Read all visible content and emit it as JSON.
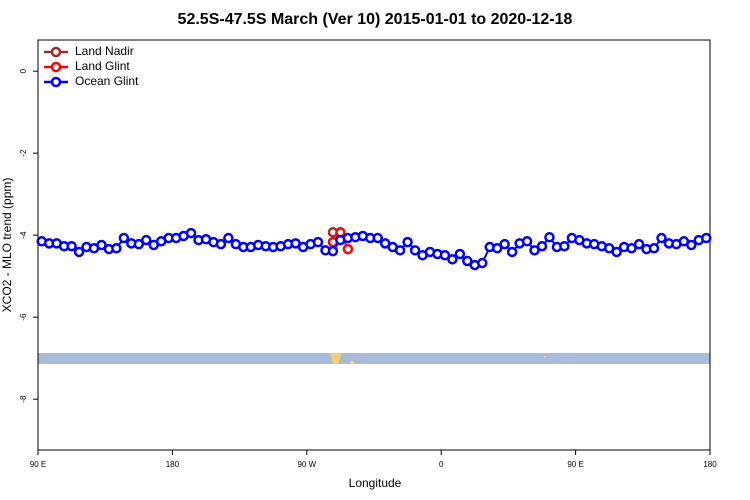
{
  "chart_data": {
    "type": "line",
    "title": "52.5S-47.5S March (Ver 10)   2015-01-01 to 2020-12-18",
    "x_label": "Longitude",
    "y_label": "XCO2 - MLO trend (ppm)",
    "xlim": [
      90,
      540
    ],
    "ylim": [
      0.76,
      -9.24
    ],
    "xticks": [
      {
        "value": 90,
        "label": "90 E"
      },
      180,
      {
        "value": 270,
        "label": "90 W"
      },
      {
        "value": 360,
        "label": "0"
      },
      {
        "value": 450,
        "label": "90 E"
      },
      {
        "value": 540,
        "label": "180"
      }
    ],
    "yticks": [
      0,
      -2,
      -4,
      -6,
      -8
    ],
    "legend": "top-left",
    "series": [
      {
        "name": "Land Nadir",
        "color": "#a52a2a",
        "x": [
          287.5
        ],
        "values": [
          -3.93
        ]
      },
      {
        "name": "Land Glint",
        "color": "#ff0000",
        "x": [
          287.5,
          292.5,
          297.5
        ],
        "values": [
          -4.17,
          -3.93,
          -4.34
        ]
      },
      {
        "name": "Ocean Glint",
        "color": "#0000ff",
        "x": [
          92.5,
          97.5,
          102.5,
          107.5,
          112.5,
          117.5,
          122.5,
          127.5,
          132.5,
          137.5,
          142.5,
          147.5,
          152.5,
          157.5,
          162.5,
          167.5,
          172.5,
          177.5,
          182.5,
          187.5,
          192.5,
          197.5,
          202.5,
          207.5,
          212.5,
          217.5,
          222.5,
          227.5,
          232.5,
          237.5,
          242.5,
          247.5,
          252.5,
          257.5,
          262.5,
          267.5,
          272.5,
          277.5,
          282.5,
          287.5,
          292.5,
          297.5,
          302.5,
          307.5,
          312.5,
          317.5,
          322.5,
          327.5,
          332.5,
          337.5,
          342.5,
          347.5,
          352.5,
          357.5,
          362.5,
          367.5,
          372.5,
          377.5,
          382.5,
          387.5,
          392.5,
          397.5,
          402.5,
          407.5,
          412.5,
          417.5,
          422.5,
          427.5,
          432.5,
          437.5,
          442.5,
          447.5,
          452.5,
          457.5,
          462.5,
          467.5,
          472.5,
          477.5,
          482.5,
          487.5,
          492.5,
          497.5,
          502.5,
          507.5,
          512.5,
          517.5,
          522.5,
          527.5,
          532.5,
          537.5
        ],
        "values": [
          -4.15,
          -4.2,
          -4.2,
          -4.27,
          -4.27,
          -4.41,
          -4.29,
          -4.32,
          -4.24,
          -4.34,
          -4.32,
          -4.07,
          -4.2,
          -4.22,
          -4.12,
          -4.24,
          -4.15,
          -4.07,
          -4.07,
          -4.02,
          -3.95,
          -4.12,
          -4.1,
          -4.17,
          -4.22,
          -4.07,
          -4.22,
          -4.29,
          -4.29,
          -4.24,
          -4.27,
          -4.29,
          -4.27,
          -4.22,
          -4.2,
          -4.29,
          -4.22,
          -4.17,
          -4.37,
          -4.39,
          -4.12,
          -4.07,
          -4.05,
          -4.02,
          -4.07,
          -4.07,
          -4.2,
          -4.29,
          -4.37,
          -4.17,
          -4.37,
          -4.49,
          -4.41,
          -4.46,
          -4.49,
          -4.59,
          -4.46,
          -4.63,
          -4.73,
          -4.68,
          -4.29,
          -4.32,
          -4.22,
          -4.41,
          -4.2,
          -4.15,
          -4.37,
          -4.27,
          -4.05,
          -4.29,
          -4.27,
          -4.07,
          -4.12,
          -4.2,
          -4.22,
          -4.27,
          -4.32,
          -4.41,
          -4.29,
          -4.32,
          -4.22,
          -4.34,
          -4.32,
          -4.07,
          -4.2,
          -4.22,
          -4.15,
          -4.24,
          -4.12,
          -4.07
        ]
      }
    ]
  }
}
